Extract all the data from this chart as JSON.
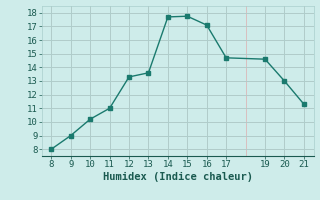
{
  "x": [
    8,
    9,
    10,
    11,
    12,
    13,
    14,
    15,
    16,
    17,
    19,
    20,
    21
  ],
  "y": [
    8.0,
    9.0,
    10.2,
    11.0,
    13.3,
    13.6,
    17.7,
    17.75,
    17.1,
    14.7,
    14.6,
    13.0,
    11.3
  ],
  "line_color": "#1a7a6e",
  "marker": "s",
  "marker_size": 2.5,
  "bg_color": "#ceecea",
  "grid_color_major": "#aacfcc",
  "grid_color_minor": "#dab8b8",
  "xlabel": "Humidex (Indice chaleur)",
  "xlim": [
    7.5,
    21.5
  ],
  "ylim": [
    7.5,
    18.5
  ],
  "xticks": [
    8,
    9,
    10,
    11,
    12,
    13,
    14,
    15,
    16,
    17,
    19,
    20,
    21
  ],
  "yticks": [
    8,
    9,
    10,
    11,
    12,
    13,
    14,
    15,
    16,
    17,
    18
  ],
  "font_color": "#1a5a50",
  "xlabel_fontsize": 7.5,
  "tick_fontsize": 6.5,
  "linewidth": 1.0
}
